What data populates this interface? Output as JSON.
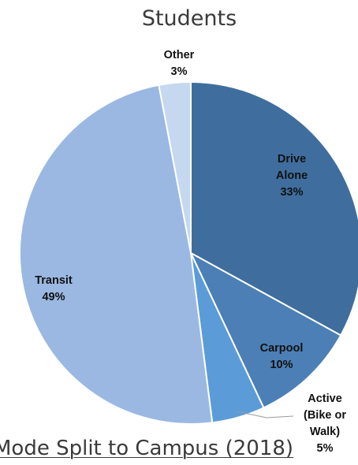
{
  "chart_data": {
    "type": "pie",
    "title": "Students",
    "slices": [
      {
        "label": "Drive Alone",
        "label_lines": [
          "Drive",
          "Alone"
        ],
        "value": 33,
        "value_label": "33%",
        "color": "#3f6e9e",
        "label_color": "#111111"
      },
      {
        "label": "Carpool",
        "label_lines": [
          "Carpool"
        ],
        "value": 10,
        "value_label": "10%",
        "color": "#4c7fb5",
        "label_color": "#111111"
      },
      {
        "label": "Active (Bike or Walk)",
        "label_lines": [
          "Active",
          "(Bike or",
          "Walk)"
        ],
        "value": 5,
        "value_label": "5%",
        "color": "#5b9bd8",
        "label_color": "#111111"
      },
      {
        "label": "Transit",
        "label_lines": [
          "Transit"
        ],
        "value": 49,
        "value_label": "49%",
        "color": "#9ab8e2",
        "label_color": "#111111"
      },
      {
        "label": "Other",
        "label_lines": [
          "Other"
        ],
        "value": 3,
        "value_label": "3%",
        "color": "#c6d8ef",
        "label_color": "#111111"
      }
    ]
  },
  "caption": "Mode Split to Campus (2018)"
}
